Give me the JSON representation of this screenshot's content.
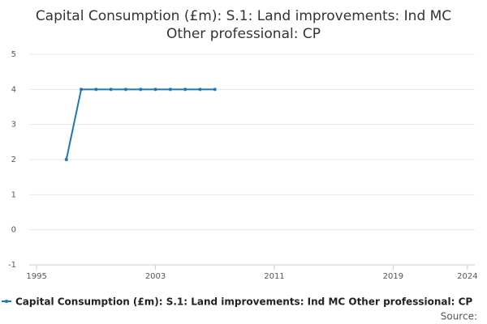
{
  "chart_data": {
    "type": "line",
    "title_lines": [
      "Capital Consumption (£m): S.1: Land improvements: Ind MC",
      "Other professional: CP"
    ],
    "x": [
      1997,
      1998,
      1999,
      2000,
      2001,
      2002,
      2003,
      2004,
      2005,
      2006,
      2007
    ],
    "series": [
      {
        "name": "Capital Consumption (£m): S.1: Land improvements: Ind MC Other professional: CP",
        "color": "#1f77b4",
        "values": [
          2,
          4,
          4,
          4,
          4,
          4,
          4,
          4,
          4,
          4,
          4
        ]
      }
    ],
    "xlim": [
      1994.5,
      2024.5
    ],
    "xticks": [
      1995,
      2003,
      2011,
      2019,
      2024
    ],
    "ylim": [
      -1,
      5
    ],
    "yticks": [
      -1,
      0,
      1,
      2,
      3,
      4,
      5
    ],
    "grid": true,
    "legend_position": "bottom",
    "source": "Source:"
  }
}
